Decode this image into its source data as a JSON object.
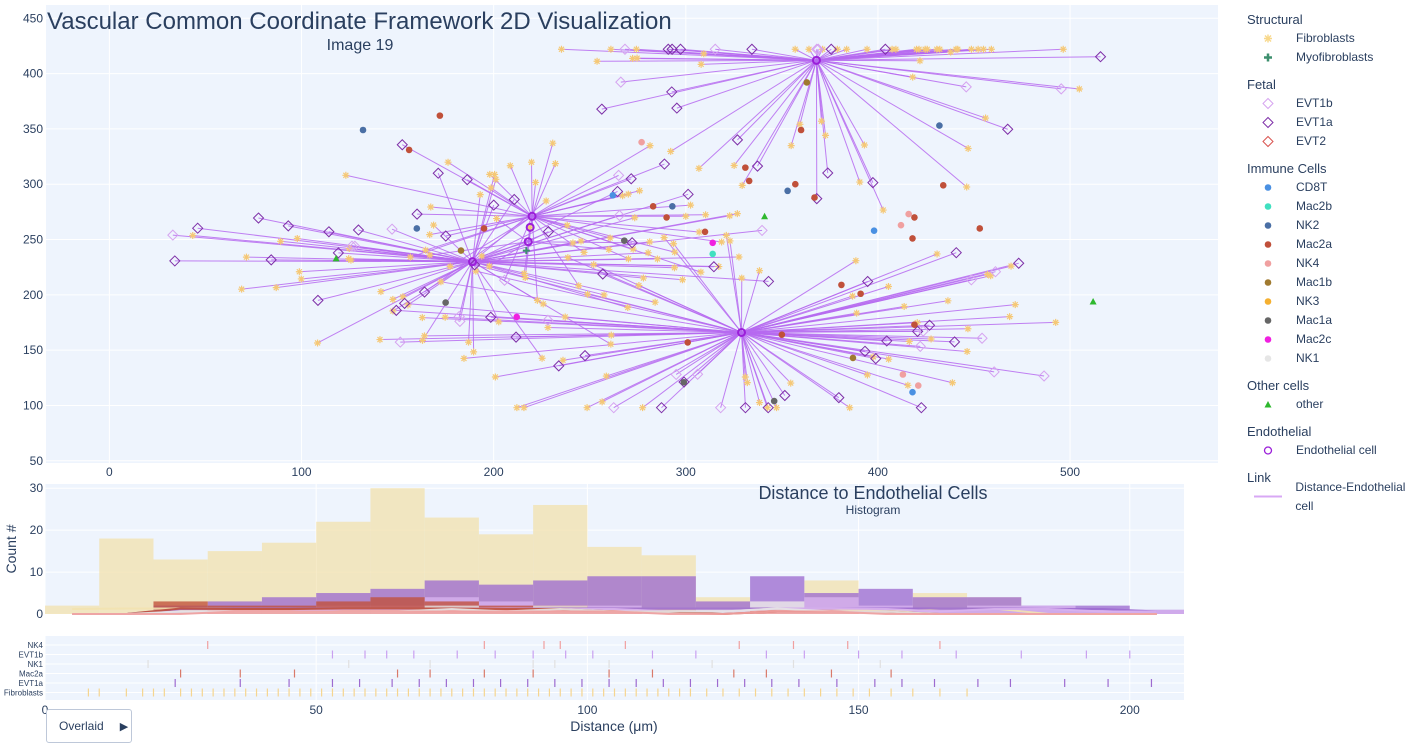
{
  "main_title": "Vascular Common Coordinate Framework 2D Visualization",
  "main_subtitle": "Image 19",
  "hist_title": "Distance to Endothelial Cells",
  "hist_subtitle": "Histogram",
  "overlay_button": "Overlaid",
  "colors": {
    "plot_bg": "#eef4fd",
    "link": "#b66af0",
    "endothelial": "#9b1fd9",
    "fibro": "#f5c876",
    "fibro_hist": "#f2e2b0"
  },
  "legend": [
    {
      "group": "Structural",
      "items": [
        {
          "label": "Fibroblasts",
          "symbol": "star",
          "color": "#f8d88a"
        },
        {
          "label": "Myofibroblasts",
          "symbol": "cross",
          "color": "#3d8f6e"
        }
      ]
    },
    {
      "group": "Fetal",
      "items": [
        {
          "label": "EVT1b",
          "symbol": "diamond-open",
          "color": "#d6a4f0"
        },
        {
          "label": "EVT1a",
          "symbol": "diamond-open",
          "color": "#7e2fa8"
        },
        {
          "label": "EVT2",
          "symbol": "diamond-open",
          "color": "#d9534f"
        }
      ]
    },
    {
      "group": "Immune Cells",
      "items": [
        {
          "label": "CD8T",
          "symbol": "circle",
          "color": "#4a90e2"
        },
        {
          "label": "Mac2b",
          "symbol": "circle",
          "color": "#40e0c0"
        },
        {
          "label": "NK2",
          "symbol": "circle",
          "color": "#4a6fa5"
        },
        {
          "label": "Mac2a",
          "symbol": "circle",
          "color": "#c0503a"
        },
        {
          "label": "NK4",
          "symbol": "circle",
          "color": "#f0a0a0"
        },
        {
          "label": "Mac1b",
          "symbol": "circle",
          "color": "#a07a30"
        },
        {
          "label": "NK3",
          "symbol": "circle",
          "color": "#f5b030"
        },
        {
          "label": "Mac1a",
          "symbol": "circle",
          "color": "#666666"
        },
        {
          "label": "Mac2c",
          "symbol": "circle",
          "color": "#f020e0"
        },
        {
          "label": "NK1",
          "symbol": "circle",
          "color": "#e6e6e6"
        }
      ]
    },
    {
      "group": "Other cells",
      "items": [
        {
          "label": "other",
          "symbol": "triangle",
          "color": "#2eb82e"
        }
      ]
    },
    {
      "group": "Endothelial",
      "items": [
        {
          "label": "Endothelial cell",
          "symbol": "circle-open",
          "color": "#9b1fd9"
        }
      ]
    },
    {
      "group": "Link",
      "items": [
        {
          "label": "Distance-Endothelial cell",
          "symbol": "line",
          "color": "#d8a8f5"
        }
      ]
    }
  ],
  "chart_data": [
    {
      "type": "scatter",
      "title": "Vascular Common Coordinate Framework 2D Visualization",
      "subtitle": "Image 19",
      "xlim": [
        -33,
        577
      ],
      "ylim": [
        48,
        462
      ],
      "x_ticks": [
        0,
        100,
        200,
        300,
        400,
        500
      ],
      "y_ticks": [
        50,
        100,
        150,
        200,
        250,
        300,
        350,
        400,
        450
      ],
      "endothelial_cells": [
        {
          "x": 189,
          "y": 230
        },
        {
          "x": 220,
          "y": 271
        },
        {
          "x": 219,
          "y": 261
        },
        {
          "x": 218,
          "y": 248
        },
        {
          "x": 368,
          "y": 412
        },
        {
          "x": 329,
          "y": 166
        }
      ],
      "immune_cells": [
        {
          "type": "NK2",
          "x": 132,
          "y": 349
        },
        {
          "type": "Mac2a",
          "x": 156,
          "y": 331
        },
        {
          "type": "Mac2a",
          "x": 172,
          "y": 362
        },
        {
          "type": "NK2",
          "x": 160,
          "y": 260
        },
        {
          "type": "Mac2a",
          "x": 195,
          "y": 260
        },
        {
          "type": "Mac1b",
          "x": 183,
          "y": 240
        },
        {
          "type": "Mac1a",
          "x": 175,
          "y": 193
        },
        {
          "type": "Mac2c",
          "x": 212,
          "y": 180
        },
        {
          "type": "CD8T",
          "x": 262,
          "y": 290
        },
        {
          "type": "Mac1a",
          "x": 268,
          "y": 249
        },
        {
          "type": "Mac2a",
          "x": 283,
          "y": 280
        },
        {
          "type": "Mac2a",
          "x": 290,
          "y": 270
        },
        {
          "type": "NK2",
          "x": 293,
          "y": 280
        },
        {
          "type": "Mac2a",
          "x": 310,
          "y": 257
        },
        {
          "type": "Mac2c",
          "x": 314,
          "y": 247
        },
        {
          "type": "Mac2b",
          "x": 314,
          "y": 237
        },
        {
          "type": "Mac2a",
          "x": 331,
          "y": 315
        },
        {
          "type": "Mac2a",
          "x": 333,
          "y": 303
        },
        {
          "type": "Mac2a",
          "x": 357,
          "y": 300
        },
        {
          "type": "NK2",
          "x": 353,
          "y": 294
        },
        {
          "type": "Mac2a",
          "x": 360,
          "y": 349
        },
        {
          "type": "Mac1b",
          "x": 363,
          "y": 392
        },
        {
          "type": "Mac2a",
          "x": 367,
          "y": 288
        },
        {
          "type": "NK2",
          "x": 432,
          "y": 353
        },
        {
          "type": "Mac2a",
          "x": 434,
          "y": 299
        },
        {
          "type": "Mac2a",
          "x": 453,
          "y": 260
        },
        {
          "type": "NK4",
          "x": 416,
          "y": 273
        },
        {
          "type": "Mac2a",
          "x": 419,
          "y": 270
        },
        {
          "type": "CD8T",
          "x": 398,
          "y": 258
        },
        {
          "type": "Mac2a",
          "x": 418,
          "y": 251
        },
        {
          "type": "NK4",
          "x": 412,
          "y": 263
        },
        {
          "type": "Mac2a",
          "x": 381,
          "y": 209
        },
        {
          "type": "Mac2a",
          "x": 391,
          "y": 201
        },
        {
          "type": "Mac2a",
          "x": 419,
          "y": 173
        },
        {
          "type": "Mac2a",
          "x": 350,
          "y": 164
        },
        {
          "type": "Mac2a",
          "x": 301,
          "y": 157
        },
        {
          "type": "Mac1b",
          "x": 387,
          "y": 143
        },
        {
          "type": "Mac1a",
          "x": 299,
          "y": 121
        },
        {
          "type": "Mac1a",
          "x": 346,
          "y": 104
        },
        {
          "type": "NK4",
          "x": 413,
          "y": 128
        },
        {
          "type": "NK4",
          "x": 421,
          "y": 118
        },
        {
          "type": "CD8T",
          "x": 418,
          "y": 112
        },
        {
          "type": "NK4",
          "x": 277,
          "y": 338
        }
      ],
      "other_cells": [
        {
          "x": 118,
          "y": 233
        },
        {
          "x": 341,
          "y": 271
        },
        {
          "x": 512,
          "y": 194
        }
      ],
      "myofibroblasts": [
        {
          "x": 217,
          "y": 240
        }
      ]
    },
    {
      "type": "bar",
      "title": "Distance to Endothelial Cells",
      "subtitle": "Histogram",
      "xlabel": "Distance (μm)",
      "ylabel": "Count #",
      "xlim": [
        0,
        210
      ],
      "ylim": [
        0,
        31
      ],
      "x_ticks": [
        0,
        50,
        100,
        150,
        200
      ],
      "y_ticks": [
        0,
        10,
        20,
        30
      ],
      "bin_width": 10,
      "bin_starts": [
        0,
        10,
        20,
        30,
        40,
        50,
        60,
        70,
        80,
        90,
        100,
        110,
        120,
        130,
        140,
        150,
        160,
        170,
        180,
        190,
        200
      ],
      "series": [
        {
          "name": "Fibroblasts",
          "color": "#f2e2b0",
          "values": [
            2,
            18,
            13,
            15,
            17,
            22,
            30,
            23,
            19,
            26,
            16,
            14,
            4,
            3,
            8,
            1,
            5,
            4,
            0,
            0,
            0
          ]
        },
        {
          "name": "EVT1a",
          "color": "#9d6bd0",
          "values": [
            0,
            0,
            2,
            3,
            4,
            5,
            6,
            8,
            7,
            8,
            9,
            9,
            3,
            9,
            5,
            6,
            4,
            4,
            2,
            2,
            1
          ]
        },
        {
          "name": "EVT1b",
          "color": "#d9b3f0",
          "values": [
            0,
            0,
            1,
            1,
            1,
            2,
            2,
            4,
            3,
            2,
            2,
            1,
            1,
            3,
            4,
            2,
            1,
            2,
            2,
            1,
            1
          ]
        },
        {
          "name": "Mac2a",
          "color": "#c0503a",
          "values": [
            0,
            0,
            3,
            2,
            2,
            3,
            4,
            3,
            2,
            2,
            1,
            1,
            0,
            1,
            1,
            1,
            0,
            0,
            0,
            0,
            0
          ]
        },
        {
          "name": "NK1",
          "color": "#e6e6e6",
          "values": [
            0,
            0,
            1,
            1,
            1,
            1,
            1,
            2,
            1,
            2,
            1,
            1,
            1,
            3,
            1,
            1,
            0,
            0,
            0,
            0,
            0
          ]
        },
        {
          "name": "NK4",
          "color": "#f0a0a0",
          "values": [
            0,
            0,
            0,
            1,
            1,
            1,
            1,
            1,
            1,
            1,
            1,
            0,
            0,
            1,
            1,
            0,
            0,
            0,
            0,
            0,
            0
          ]
        }
      ]
    },
    {
      "type": "rug",
      "xlim": [
        0,
        210
      ],
      "rows": [
        "NK4",
        "EVT1b",
        "NK1",
        "Mac2a",
        "EVT1a",
        "Fibroblasts"
      ],
      "row_colors": {
        "NK4": "#f0a0a0",
        "EVT1b": "#c9a0f0",
        "NK1": "#e0e0e0",
        "Mac2a": "#d97a6a",
        "EVT1a": "#9d6bd0",
        "Fibroblasts": "#f5d590"
      },
      "ticks": {
        "NK4": [
          30,
          81,
          92,
          95,
          107,
          128,
          138,
          148,
          165
        ],
        "EVT1b": [
          53,
          59,
          63,
          68,
          76,
          83,
          90,
          96,
          101,
          112,
          120,
          133,
          140,
          150,
          158,
          168,
          180,
          192,
          200
        ],
        "NK1": [
          19,
          56,
          71,
          90,
          94,
          104,
          123,
          138,
          154
        ],
        "Mac2a": [
          25,
          36,
          46,
          65,
          71,
          81,
          90,
          104,
          112,
          127,
          133,
          145,
          156
        ],
        "EVT1a": [
          24,
          36,
          45,
          53,
          58,
          64,
          69,
          74,
          79,
          84,
          89,
          94,
          99,
          104,
          109,
          114,
          119,
          124,
          129,
          134,
          139,
          146,
          153,
          158,
          164,
          172,
          178,
          188,
          196,
          204
        ],
        "Fibroblasts": [
          8,
          10,
          15,
          18,
          20,
          22,
          25,
          27,
          29,
          31,
          33,
          35,
          37,
          39,
          41,
          43,
          45,
          47,
          49,
          51,
          53,
          55,
          57,
          59,
          61,
          63,
          65,
          67,
          69,
          71,
          73,
          75,
          77,
          79,
          81,
          83,
          85,
          87,
          89,
          91,
          93,
          95,
          97,
          99,
          101,
          103,
          105,
          107,
          109,
          111,
          113,
          115,
          117,
          119,
          122,
          125,
          128,
          131,
          134,
          137,
          140,
          143,
          146,
          149,
          152,
          156,
          160,
          165,
          170
        ]
      }
    }
  ]
}
